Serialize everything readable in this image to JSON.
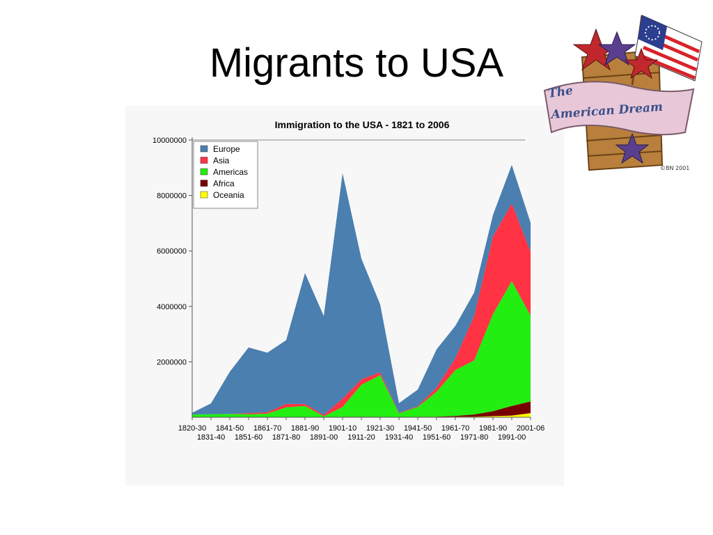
{
  "slide": {
    "title": "Migrants to USA"
  },
  "badge": {
    "line1": "The",
    "line2": "American Dream",
    "signature": "©BN 2001"
  },
  "colors": {
    "Europe": "#4a7fb0",
    "Asia": "#ff3344",
    "Americas": "#22ee11",
    "Africa": "#770000",
    "Oceania": "#ffff00"
  },
  "chart_data": {
    "type": "area",
    "stacked": true,
    "title": "Immigration to the USA - 1821 to 2006",
    "xlabel": "",
    "ylabel": "",
    "ylim": [
      0,
      10000000
    ],
    "y_ticks": [
      "2000000",
      "4000000",
      "6000000",
      "8000000",
      "10000000"
    ],
    "x_ticks_row1": [
      "1820-30",
      "1841-50",
      "1861-70",
      "1881-90",
      "1901-10",
      "1921-30",
      "1941-50",
      "1961-70",
      "1981-90",
      "2001-06"
    ],
    "x_ticks_row2": [
      "1831-40",
      "1851-60",
      "1871-80",
      "1891-00",
      "1911-20",
      "1931-40",
      "1951-60",
      "1971-80",
      "1991-00"
    ],
    "categories": [
      "1820-30",
      "1831-40",
      "1841-50",
      "1851-60",
      "1861-70",
      "1871-80",
      "1881-90",
      "1891-00",
      "1901-10",
      "1911-20",
      "1921-30",
      "1931-40",
      "1941-50",
      "1951-60",
      "1961-70",
      "1971-80",
      "1981-90",
      "1991-00",
      "2001-06"
    ],
    "legend_position": "top-left",
    "grid": false,
    "series": [
      {
        "name": "Oceania",
        "values": [
          0,
          0,
          0,
          0,
          10000,
          10000,
          10000,
          0,
          10000,
          10000,
          10000,
          0,
          10000,
          10000,
          20000,
          20000,
          40000,
          60000,
          150000
        ]
      },
      {
        "name": "Africa",
        "values": [
          0,
          0,
          0,
          0,
          0,
          0,
          0,
          0,
          10000,
          10000,
          10000,
          0,
          10000,
          10000,
          30000,
          80000,
          180000,
          350000,
          420000
        ]
      },
      {
        "name": "Americas",
        "values": [
          100000,
          110000,
          120000,
          110000,
          120000,
          350000,
          400000,
          30000,
          350000,
          1150000,
          1500000,
          140000,
          350000,
          900000,
          1650000,
          1950000,
          3500000,
          4500000,
          3100000
        ]
      },
      {
        "name": "Asia",
        "values": [
          0,
          0,
          0,
          40000,
          50000,
          120000,
          70000,
          50000,
          300000,
          200000,
          100000,
          20000,
          30000,
          150000,
          430000,
          1600000,
          2800000,
          2800000,
          2300000
        ]
      },
      {
        "name": "Europe",
        "values": [
          60000,
          390000,
          1520000,
          2370000,
          2150000,
          2300000,
          4720000,
          3570000,
          8130000,
          4350000,
          2450000,
          350000,
          600000,
          1380000,
          1170000,
          850000,
          780000,
          1390000,
          1050000
        ]
      }
    ]
  }
}
